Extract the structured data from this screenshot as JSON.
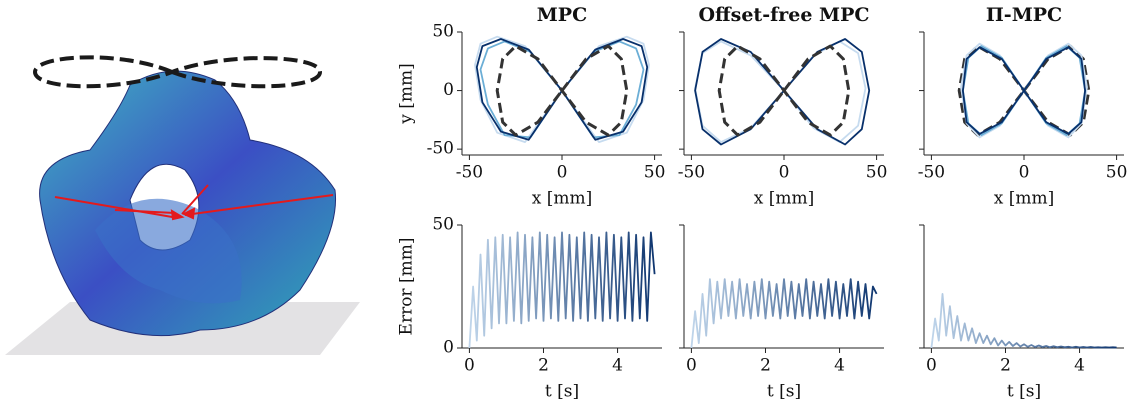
{
  "chart_data": [
    {
      "type": "line",
      "title": "MPC",
      "xlabel": "x [mm]",
      "ylabel": "y [mm]",
      "xlim": [
        -54,
        54
      ],
      "ylim": [
        -55,
        50
      ],
      "xticks": [
        -50,
        0,
        50
      ],
      "yticks": [
        -50,
        0,
        50
      ],
      "ytick_labels": true,
      "series": [
        {
          "color": "#c6dbef",
          "x": [
            0,
            20,
            35,
            44,
            47,
            44,
            35,
            20,
            0,
            -20,
            -35,
            -44,
            -47,
            -44,
            -35,
            -20,
            0
          ],
          "values": [
            0,
            38,
            46,
            40,
            22,
            -8,
            -36,
            -44,
            0,
            38,
            46,
            40,
            22,
            -8,
            -36,
            -44,
            0
          ]
        },
        {
          "color": "#6baed6",
          "x": [
            0,
            17,
            31,
            40,
            44,
            40,
            31,
            17,
            0,
            -17,
            -31,
            -40,
            -44,
            -40,
            -31,
            -17,
            0
          ],
          "values": [
            0,
            33,
            42,
            36,
            18,
            -12,
            -38,
            -40,
            0,
            33,
            42,
            36,
            18,
            -12,
            -38,
            -40,
            0
          ]
        },
        {
          "color": "#08306b",
          "x": [
            0,
            18,
            33,
            43,
            46,
            43,
            33,
            18,
            0,
            -18,
            -33,
            -43,
            -46,
            -43,
            -33,
            -18,
            0
          ],
          "values": [
            0,
            35,
            44,
            38,
            20,
            -10,
            -35,
            -42,
            0,
            35,
            44,
            38,
            20,
            -10,
            -35,
            -42,
            0
          ]
        },
        {
          "color": "#333333",
          "dash": true,
          "x": [
            0,
            13,
            25,
            32,
            35,
            32,
            25,
            13,
            0,
            -13,
            -25,
            -32,
            -35,
            -32,
            -25,
            -13,
            0
          ],
          "values": [
            0,
            27,
            38,
            27,
            0,
            -27,
            -38,
            -27,
            0,
            27,
            38,
            27,
            0,
            -27,
            -38,
            -27,
            0
          ]
        }
      ]
    },
    {
      "type": "line",
      "title": "Offset-free MPC",
      "xlabel": "x [mm]",
      "xlim": [
        -54,
        54
      ],
      "ylim": [
        -55,
        50
      ],
      "xticks": [
        -50,
        0,
        50
      ],
      "yticks": [
        -50,
        0,
        50
      ],
      "ytick_labels": false,
      "series": [
        {
          "color": "#c6dbef",
          "x": [
            0,
            16,
            30,
            40,
            44,
            40,
            30,
            16,
            0,
            -18,
            -34,
            -44,
            -48,
            -44,
            -34,
            -18,
            0
          ],
          "values": [
            0,
            30,
            42,
            32,
            2,
            -30,
            -44,
            -32,
            0,
            30,
            42,
            32,
            2,
            -30,
            -44,
            -32,
            0
          ]
        },
        {
          "color": "#08306b",
          "x": [
            0,
            18,
            33,
            42,
            46,
            42,
            33,
            18,
            0,
            -18,
            -34,
            -44,
            -48,
            -44,
            -34,
            -18,
            0
          ],
          "values": [
            0,
            33,
            44,
            33,
            0,
            -33,
            -46,
            -33,
            0,
            33,
            44,
            33,
            0,
            -33,
            -46,
            -33,
            0
          ]
        },
        {
          "color": "#333333",
          "dash": true,
          "x": [
            0,
            13,
            25,
            32,
            35,
            32,
            25,
            13,
            0,
            -13,
            -25,
            -32,
            -35,
            -32,
            -25,
            -13,
            0
          ],
          "values": [
            0,
            27,
            38,
            27,
            0,
            -27,
            -38,
            -27,
            0,
            27,
            38,
            27,
            0,
            -27,
            -38,
            -27,
            0
          ]
        }
      ]
    },
    {
      "type": "line",
      "title": "Π-MPC",
      "xlabel": "x [mm]",
      "xlim": [
        -54,
        54
      ],
      "ylim": [
        -55,
        50
      ],
      "xticks": [
        -50,
        0,
        50
      ],
      "yticks": [
        -50,
        0,
        50
      ],
      "ytick_labels": false,
      "series": [
        {
          "color": "#333333",
          "dash": true,
          "x": [
            0,
            13,
            25,
            32,
            35,
            32,
            25,
            13,
            0,
            -13,
            -25,
            -32,
            -35,
            -32,
            -25,
            -13,
            0
          ],
          "values": [
            0,
            27,
            38,
            27,
            0,
            -27,
            -38,
            -27,
            0,
            27,
            38,
            27,
            0,
            -27,
            -38,
            -27,
            0
          ]
        },
        {
          "color": "#c6dbef",
          "x": [
            0,
            13,
            24,
            31,
            34,
            31,
            24,
            13,
            0,
            -13,
            -24,
            -31,
            -34,
            -31,
            -24,
            -13,
            0
          ],
          "values": [
            0,
            30,
            40,
            30,
            3,
            -28,
            -40,
            -30,
            0,
            30,
            40,
            30,
            3,
            -28,
            -40,
            -30,
            0
          ]
        },
        {
          "color": "#6baed6",
          "x": [
            0,
            12,
            23,
            30,
            33,
            30,
            23,
            12,
            0,
            -12,
            -23,
            -30,
            -33,
            -30,
            -23,
            -12,
            0
          ],
          "values": [
            0,
            28,
            38,
            28,
            0,
            -28,
            -38,
            -28,
            0,
            28,
            38,
            28,
            0,
            -28,
            -38,
            -28,
            0
          ]
        },
        {
          "color": "#08306b",
          "x": [
            0,
            12,
            24,
            31,
            33,
            31,
            24,
            12,
            0,
            -12,
            -24,
            -31,
            -33,
            -31,
            -24,
            -12,
            0
          ],
          "values": [
            0,
            27,
            37,
            27,
            0,
            -27,
            -37,
            -27,
            0,
            27,
            37,
            27,
            0,
            -27,
            -37,
            -27,
            0
          ]
        }
      ]
    },
    {
      "type": "line",
      "xlabel": "t [s]",
      "ylabel": "Error [mm]",
      "xlim": [
        -0.2,
        5.2
      ],
      "ylim": [
        0,
        50
      ],
      "xticks": [
        0,
        2,
        4
      ],
      "yticks": [
        0,
        50
      ],
      "ytick_labels": true,
      "x": [
        0,
        0.1,
        0.2,
        0.3,
        0.4,
        0.5,
        0.6,
        0.7,
        0.8,
        0.9,
        1,
        1.1,
        1.2,
        1.3,
        1.4,
        1.5,
        1.6,
        1.7,
        1.8,
        1.9,
        2,
        2.1,
        2.2,
        2.3,
        2.4,
        2.5,
        2.6,
        2.7,
        2.8,
        2.9,
        3,
        3.1,
        3.2,
        3.3,
        3.4,
        3.5,
        3.6,
        3.7,
        3.8,
        3.9,
        4,
        4.1,
        4.2,
        4.3,
        4.4,
        4.5,
        4.6,
        4.7,
        4.8,
        4.9,
        5
      ],
      "series": [
        {
          "color_from": "#c6dbef",
          "color_to": "#08306b",
          "values": [
            0,
            25,
            3,
            38,
            5,
            44,
            8,
            45,
            10,
            46,
            10,
            45,
            11,
            47,
            10,
            46,
            11,
            45,
            12,
            47,
            11,
            46,
            12,
            45,
            11,
            47,
            12,
            46,
            11,
            45,
            12,
            47,
            11,
            46,
            12,
            45,
            11,
            47,
            12,
            46,
            11,
            45,
            12,
            47,
            11,
            46,
            12,
            45,
            11,
            47,
            30
          ]
        }
      ]
    },
    {
      "type": "line",
      "xlabel": "t [s]",
      "xlim": [
        -0.2,
        5.2
      ],
      "ylim": [
        0,
        50
      ],
      "xticks": [
        0,
        2,
        4
      ],
      "yticks": [
        0,
        50
      ],
      "ytick_labels": false,
      "x": [
        0,
        0.1,
        0.2,
        0.3,
        0.4,
        0.5,
        0.6,
        0.7,
        0.8,
        0.9,
        1,
        1.1,
        1.2,
        1.3,
        1.4,
        1.5,
        1.6,
        1.7,
        1.8,
        1.9,
        2,
        2.1,
        2.2,
        2.3,
        2.4,
        2.5,
        2.6,
        2.7,
        2.8,
        2.9,
        3,
        3.1,
        3.2,
        3.3,
        3.4,
        3.5,
        3.6,
        3.7,
        3.8,
        3.9,
        4,
        4.1,
        4.2,
        4.3,
        4.4,
        4.5,
        4.6,
        4.7,
        4.8,
        4.9,
        5
      ],
      "series": [
        {
          "color_from": "#c6dbef",
          "color_to": "#08306b",
          "values": [
            0,
            15,
            2,
            22,
            5,
            28,
            10,
            27,
            12,
            28,
            13,
            27,
            12,
            28,
            13,
            26,
            12,
            27,
            13,
            28,
            12,
            27,
            13,
            26,
            12,
            28,
            13,
            27,
            12,
            26,
            13,
            28,
            12,
            27,
            13,
            26,
            12,
            28,
            13,
            27,
            12,
            26,
            13,
            28,
            12,
            27,
            13,
            26,
            12,
            25,
            22
          ]
        }
      ]
    },
    {
      "type": "line",
      "xlabel": "t [s]",
      "xlim": [
        -0.2,
        5.2
      ],
      "ylim": [
        0,
        50
      ],
      "xticks": [
        0,
        2,
        4
      ],
      "yticks": [
        0,
        50
      ],
      "ytick_labels": false,
      "x": [
        0,
        0.1,
        0.2,
        0.3,
        0.4,
        0.5,
        0.6,
        0.7,
        0.8,
        0.9,
        1,
        1.1,
        1.2,
        1.3,
        1.4,
        1.5,
        1.6,
        1.7,
        1.8,
        1.9,
        2,
        2.1,
        2.2,
        2.3,
        2.4,
        2.5,
        2.6,
        2.7,
        2.8,
        2.9,
        3,
        3.1,
        3.2,
        3.3,
        3.4,
        3.5,
        3.6,
        3.7,
        3.8,
        3.9,
        4,
        4.1,
        4.2,
        4.3,
        4.4,
        4.5,
        4.6,
        4.7,
        4.8,
        4.9,
        5
      ],
      "series": [
        {
          "color_from": "#c6dbef",
          "color_to": "#08306b",
          "values": [
            0,
            12,
            3,
            22,
            5,
            17,
            4,
            13,
            3,
            10,
            3,
            8,
            2,
            6,
            2,
            5,
            1.5,
            4,
            1,
            3,
            1,
            2.5,
            0.8,
            2,
            0.6,
            1.5,
            0.5,
            1.2,
            0.4,
            1,
            0.4,
            0.8,
            0.3,
            0.7,
            0.3,
            0.6,
            0.3,
            0.5,
            0.2,
            0.5,
            0.2,
            0.4,
            0.2,
            0.4,
            0.2,
            0.3,
            0.2,
            0.3,
            0.2,
            0.3,
            0.2
          ]
        }
      ]
    }
  ]
}
